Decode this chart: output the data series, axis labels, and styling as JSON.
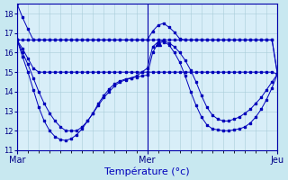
{
  "xlabel": "Température (°c)",
  "ylim": [
    11,
    18.5
  ],
  "yticks": [
    11,
    12,
    13,
    14,
    15,
    16,
    17,
    18
  ],
  "xlim": [
    0,
    48
  ],
  "xtick_positions": [
    0,
    24,
    48
  ],
  "xtick_labels": [
    "Mar",
    "Mer",
    "Jeu"
  ],
  "bg_color": "#c8e8f0",
  "plot_bg_color": "#d8eef8",
  "grid_color": "#a8ccd8",
  "line_color": "#0000bb",
  "n_points": 49,
  "series": [
    [
      18.5,
      17.8,
      17.2,
      16.65,
      16.65,
      16.65,
      16.65,
      16.65,
      16.65,
      16.65,
      16.65,
      16.65,
      16.65,
      16.65,
      16.65,
      16.65,
      16.65,
      16.65,
      16.65,
      16.65,
      16.65,
      16.65,
      16.65,
      16.65,
      16.65,
      17.1,
      17.4,
      17.5,
      17.3,
      17.05,
      16.7,
      16.65,
      16.65,
      16.65,
      16.65,
      16.65,
      16.65,
      16.65,
      16.65,
      16.65,
      16.65,
      16.65,
      16.65,
      16.65,
      16.65,
      16.65,
      16.65,
      16.65,
      14.9
    ],
    [
      16.65,
      16.65,
      16.65,
      16.65,
      16.65,
      16.65,
      16.65,
      16.65,
      16.65,
      16.65,
      16.65,
      16.65,
      16.65,
      16.65,
      16.65,
      16.65,
      16.65,
      16.65,
      16.65,
      16.65,
      16.65,
      16.65,
      16.65,
      16.65,
      16.65,
      16.65,
      16.65,
      16.65,
      16.65,
      16.65,
      16.65,
      16.65,
      16.65,
      16.65,
      16.65,
      16.65,
      16.65,
      16.65,
      16.65,
      16.65,
      16.65,
      16.65,
      16.65,
      16.65,
      16.65,
      16.65,
      16.65,
      16.65,
      14.9
    ],
    [
      16.65,
      16.2,
      15.7,
      15.2,
      15.0,
      15.0,
      15.0,
      15.0,
      15.0,
      15.0,
      15.0,
      15.0,
      15.0,
      15.0,
      15.0,
      15.0,
      15.0,
      15.0,
      15.0,
      15.0,
      15.0,
      15.0,
      15.0,
      15.0,
      15.0,
      15.0,
      15.0,
      15.0,
      15.0,
      15.0,
      15.0,
      15.0,
      15.0,
      15.0,
      15.0,
      15.0,
      15.0,
      15.0,
      15.0,
      15.0,
      15.0,
      15.0,
      15.0,
      15.0,
      15.0,
      15.0,
      15.0,
      15.0,
      14.9
    ],
    [
      16.65,
      16.0,
      15.4,
      14.7,
      14.0,
      13.4,
      12.9,
      12.5,
      12.2,
      12.0,
      12.0,
      12.0,
      12.2,
      12.5,
      12.9,
      13.3,
      13.7,
      14.0,
      14.3,
      14.5,
      14.6,
      14.7,
      14.8,
      15.0,
      15.2,
      16.3,
      16.55,
      16.6,
      16.5,
      16.3,
      16.0,
      15.6,
      15.1,
      14.5,
      13.8,
      13.2,
      12.8,
      12.6,
      12.5,
      12.5,
      12.6,
      12.7,
      12.9,
      13.1,
      13.4,
      13.7,
      14.1,
      14.5,
      14.9
    ],
    [
      16.65,
      15.8,
      15.0,
      14.1,
      13.2,
      12.5,
      12.0,
      11.7,
      11.55,
      11.5,
      11.6,
      11.8,
      12.1,
      12.5,
      12.9,
      13.4,
      13.8,
      14.15,
      14.4,
      14.55,
      14.65,
      14.7,
      14.75,
      14.8,
      14.85,
      16.0,
      16.5,
      16.55,
      16.4,
      16.0,
      15.5,
      14.8,
      14.0,
      13.3,
      12.7,
      12.3,
      12.1,
      12.05,
      12.0,
      12.0,
      12.05,
      12.1,
      12.2,
      12.4,
      12.7,
      13.1,
      13.6,
      14.2,
      14.9
    ]
  ],
  "triangle_series": 4,
  "triangle_idx": 26
}
